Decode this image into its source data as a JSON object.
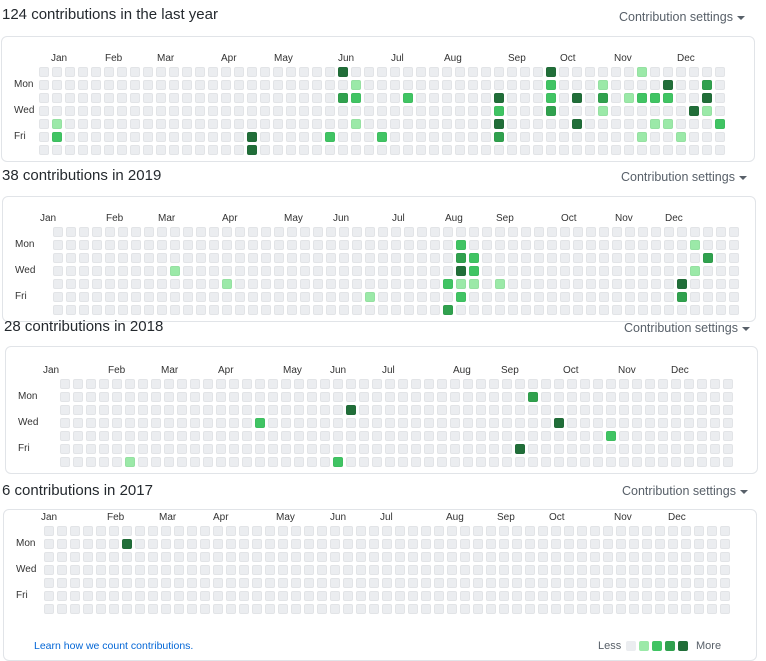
{
  "settings_label": "Contribution settings",
  "colors": {
    "l0": "#ebedf0",
    "l1": "#9be9a8",
    "l2": "#40c463",
    "l3": "#30a14e",
    "l4": "#216e39"
  },
  "day_labels": [
    "Mon",
    "Wed",
    "Fri"
  ],
  "footer": {
    "learn_link": "Learn how we count contributions.",
    "less": "Less",
    "more": "More"
  },
  "calendars": [
    {
      "heading": "124 contributions in the last year",
      "months": [
        "Jan",
        "Feb",
        "Mar",
        "Apr",
        "May",
        "Jun",
        "Jul",
        "Aug",
        "Sep",
        "Oct",
        "Nov",
        "Dec"
      ],
      "weeks": 53,
      "active": [
        {
          "w": 1,
          "d": 4,
          "l": 1
        },
        {
          "w": 1,
          "d": 5,
          "l": 2
        },
        {
          "w": 16,
          "d": 5,
          "l": 4
        },
        {
          "w": 16,
          "d": 6,
          "l": 4
        },
        {
          "w": 22,
          "d": 5,
          "l": 2
        },
        {
          "w": 23,
          "d": 0,
          "l": 4
        },
        {
          "w": 23,
          "d": 2,
          "l": 3
        },
        {
          "w": 24,
          "d": 1,
          "l": 1
        },
        {
          "w": 24,
          "d": 2,
          "l": 2
        },
        {
          "w": 24,
          "d": 4,
          "l": 1
        },
        {
          "w": 26,
          "d": 5,
          "l": 2
        },
        {
          "w": 28,
          "d": 2,
          "l": 2
        },
        {
          "w": 35,
          "d": 2,
          "l": 4
        },
        {
          "w": 35,
          "d": 3,
          "l": 2
        },
        {
          "w": 35,
          "d": 4,
          "l": 4
        },
        {
          "w": 35,
          "d": 5,
          "l": 3
        },
        {
          "w": 39,
          "d": 0,
          "l": 4
        },
        {
          "w": 39,
          "d": 1,
          "l": 2
        },
        {
          "w": 39,
          "d": 2,
          "l": 2
        },
        {
          "w": 39,
          "d": 3,
          "l": 3
        },
        {
          "w": 41,
          "d": 2,
          "l": 4
        },
        {
          "w": 41,
          "d": 4,
          "l": 4
        },
        {
          "w": 43,
          "d": 1,
          "l": 1
        },
        {
          "w": 43,
          "d": 2,
          "l": 3
        },
        {
          "w": 43,
          "d": 3,
          "l": 1
        },
        {
          "w": 45,
          "d": 2,
          "l": 1
        },
        {
          "w": 46,
          "d": 0,
          "l": 1
        },
        {
          "w": 46,
          "d": 2,
          "l": 2
        },
        {
          "w": 46,
          "d": 5,
          "l": 1
        },
        {
          "w": 47,
          "d": 2,
          "l": 2
        },
        {
          "w": 47,
          "d": 4,
          "l": 1
        },
        {
          "w": 48,
          "d": 1,
          "l": 4
        },
        {
          "w": 48,
          "d": 2,
          "l": 2
        },
        {
          "w": 48,
          "d": 4,
          "l": 1
        },
        {
          "w": 49,
          "d": 5,
          "l": 1
        },
        {
          "w": 50,
          "d": 3,
          "l": 4
        },
        {
          "w": 51,
          "d": 1,
          "l": 3
        },
        {
          "w": 51,
          "d": 2,
          "l": 4
        },
        {
          "w": 51,
          "d": 3,
          "l": 1
        },
        {
          "w": 52,
          "d": 4,
          "l": 2
        }
      ]
    },
    {
      "heading": "38 contributions in 2019",
      "months": [
        "Jan",
        "Feb",
        "Mar",
        "Apr",
        "May",
        "Jun",
        "Jul",
        "Aug",
        "Sep",
        "Oct",
        "Nov",
        "Dec"
      ],
      "weeks": 53,
      "active": [
        {
          "w": 9,
          "d": 3,
          "l": 1
        },
        {
          "w": 13,
          "d": 4,
          "l": 1
        },
        {
          "w": 24,
          "d": 5,
          "l": 1
        },
        {
          "w": 30,
          "d": 4,
          "l": 2
        },
        {
          "w": 30,
          "d": 6,
          "l": 3
        },
        {
          "w": 31,
          "d": 1,
          "l": 2
        },
        {
          "w": 31,
          "d": 2,
          "l": 3
        },
        {
          "w": 31,
          "d": 3,
          "l": 4
        },
        {
          "w": 31,
          "d": 4,
          "l": 1
        },
        {
          "w": 31,
          "d": 5,
          "l": 2
        },
        {
          "w": 32,
          "d": 2,
          "l": 2
        },
        {
          "w": 32,
          "d": 3,
          "l": 2
        },
        {
          "w": 32,
          "d": 4,
          "l": 1
        },
        {
          "w": 34,
          "d": 4,
          "l": 1
        },
        {
          "w": 48,
          "d": 4,
          "l": 4
        },
        {
          "w": 48,
          "d": 5,
          "l": 3
        },
        {
          "w": 49,
          "d": 1,
          "l": 1
        },
        {
          "w": 49,
          "d": 3,
          "l": 1
        },
        {
          "w": 50,
          "d": 2,
          "l": 3
        }
      ]
    },
    {
      "heading": "28 contributions in 2018",
      "months": [
        "Jan",
        "Feb",
        "Mar",
        "Apr",
        "May",
        "Jun",
        "Jul",
        "Aug",
        "Sep",
        "Oct",
        "Nov",
        "Dec"
      ],
      "weeks": 53,
      "active": [
        {
          "w": 5,
          "d": 6,
          "l": 1
        },
        {
          "w": 15,
          "d": 3,
          "l": 2
        },
        {
          "w": 21,
          "d": 6,
          "l": 2
        },
        {
          "w": 22,
          "d": 2,
          "l": 4
        },
        {
          "w": 35,
          "d": 5,
          "l": 4
        },
        {
          "w": 36,
          "d": 1,
          "l": 3
        },
        {
          "w": 38,
          "d": 3,
          "l": 4
        },
        {
          "w": 42,
          "d": 4,
          "l": 2
        }
      ]
    },
    {
      "heading": "6 contributions in 2017",
      "months": [
        "Jan",
        "Feb",
        "Mar",
        "Apr",
        "May",
        "Jun",
        "Jul",
        "Aug",
        "Sep",
        "Oct",
        "Nov",
        "Dec"
      ],
      "weeks": 53,
      "active": [
        {
          "w": 6,
          "d": 1,
          "l": 4
        }
      ]
    }
  ]
}
